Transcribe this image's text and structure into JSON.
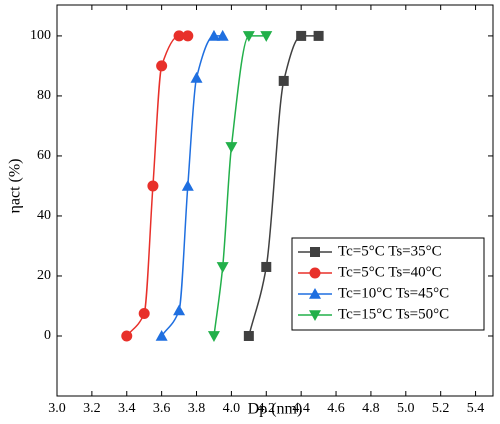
{
  "chart_data": {
    "type": "line",
    "x_label": "Dp (nm)",
    "y_label": "ηact (%)",
    "xlim": [
      3.0,
      5.5
    ],
    "ylim": [
      -20,
      110.3
    ],
    "xticks": [
      {
        "value": 3,
        "label": "3.0"
      },
      3.2,
      3.4,
      3.6,
      3.8,
      {
        "value": 4,
        "label": "4.0"
      },
      4.2,
      4.4,
      4.6,
      4.8,
      {
        "value": 5,
        "label": "5.0"
      },
      5.2,
      5.4
    ],
    "yticks": [
      0,
      20,
      40,
      60,
      80,
      100
    ],
    "legend": "lower right",
    "series": [
      {
        "name": "Tc=5°C Ts=35°C",
        "color": "#404040",
        "marker": "square",
        "x": [
          4.1,
          4.2,
          4.3,
          4.4,
          4.5
        ],
        "values": [
          0,
          23,
          85,
          100,
          100
        ]
      },
      {
        "name": "Tc=5°C Ts=40°C",
        "color": "#e8302a",
        "marker": "circle",
        "x": [
          3.4,
          3.5,
          3.55,
          3.6,
          3.7,
          3.75
        ],
        "values": [
          0,
          7.5,
          50,
          90,
          100,
          100
        ]
      },
      {
        "name": "Tc=10°C Ts=45°C",
        "color": "#1f6fe0",
        "marker": "triangle-up",
        "x": [
          3.6,
          3.7,
          3.75,
          3.8,
          3.9,
          3.95
        ],
        "values": [
          0,
          8.5,
          50,
          86,
          100,
          100
        ]
      },
      {
        "name": "Tc=15°C Ts=50°C",
        "color": "#22b04a",
        "marker": "triangle-down",
        "x": [
          3.9,
          3.95,
          4.0,
          4.1,
          4.2
        ],
        "values": [
          0,
          23,
          63,
          100,
          100
        ]
      }
    ]
  }
}
